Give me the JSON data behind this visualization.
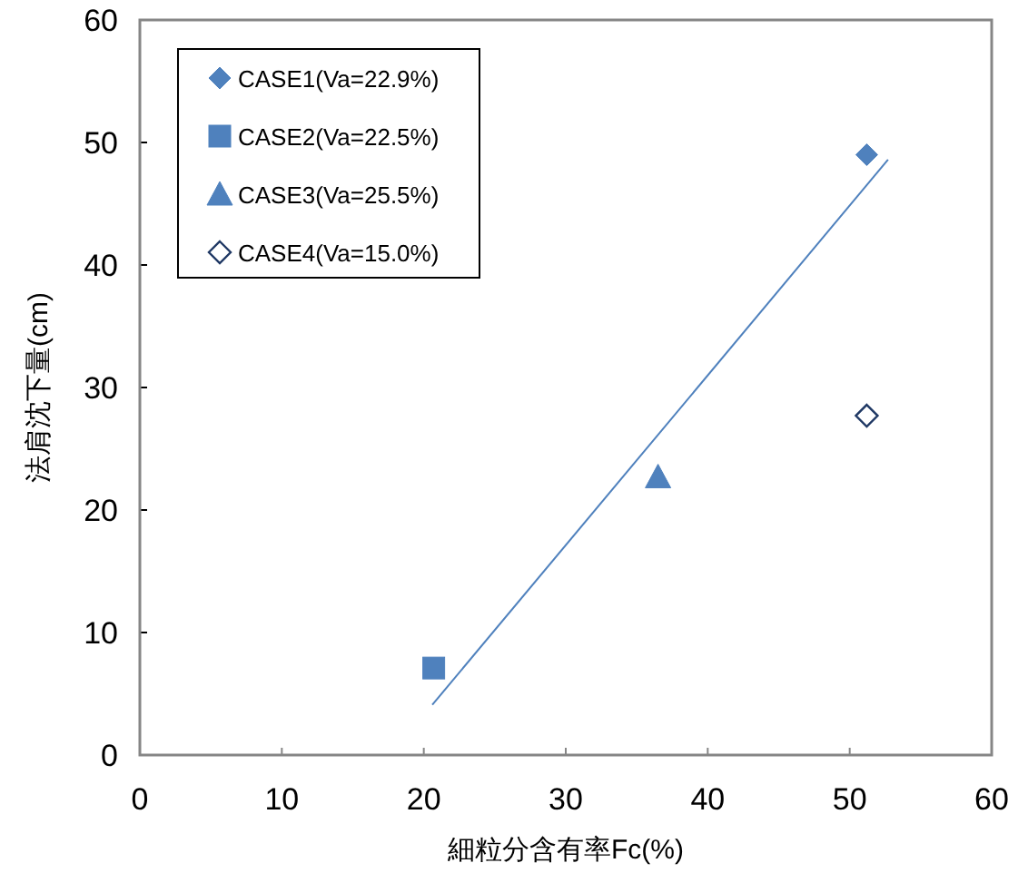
{
  "chart_data": {
    "type": "scatter",
    "xlabel": "細粒分含有率Fc(%)",
    "ylabel": "法肩沈下量(cm)",
    "xlim": [
      0,
      60
    ],
    "xticks": [
      0,
      10,
      20,
      30,
      40,
      50,
      60
    ],
    "ylim": [
      0,
      60
    ],
    "yticks": [
      0,
      10,
      20,
      30,
      40,
      50,
      60
    ],
    "grid": false,
    "legend": "top left",
    "series": [
      {
        "name": "CASE1(Va=22.9%)",
        "color": "#4f81bd",
        "marker": "diamond",
        "x": [
          51.2
        ],
        "values": [
          49.0
        ]
      },
      {
        "name": "CASE2(Va=22.5%)",
        "color": "#4f81bd",
        "marker": "square",
        "x": [
          20.7
        ],
        "values": [
          7.1
        ]
      },
      {
        "name": "CASE3(Va=25.5%)",
        "color": "#4f81bd",
        "marker": "triangle",
        "x": [
          36.5
        ],
        "values": [
          22.7
        ]
      },
      {
        "name": "CASE4(Va=15.0%)",
        "color": "#1f3864",
        "marker": "diamond_open",
        "x": [
          51.2
        ],
        "values": [
          27.7
        ]
      },
      {
        "type": "line",
        "color": "#4f81bd",
        "x": [
          20.6,
          52.7
        ],
        "values": [
          4.1,
          48.6
        ]
      }
    ]
  }
}
